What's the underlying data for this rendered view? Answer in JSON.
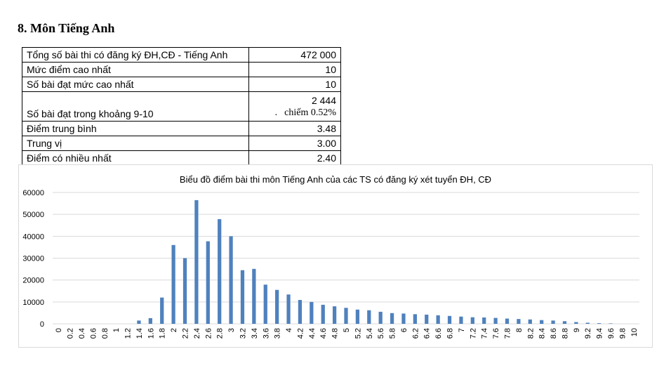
{
  "heading": "8. Môn Tiếng Anh",
  "stats": {
    "rows": [
      {
        "label": "Tổng số bài thi có đăng ký ĐH,CĐ - Tiếng Anh",
        "value": "472 000"
      },
      {
        "label": "Mức điểm cao nhất",
        "value": "10"
      },
      {
        "label": "Số bài đạt mức cao nhất",
        "value": "10"
      },
      {
        "label": "Số bài đạt trong khoảng 9-10",
        "value": "2 444",
        "subvalue": "chiếm 0.52%"
      },
      {
        "label": "Điểm trung bình",
        "value": "3.48"
      },
      {
        "label": "Trung vị",
        "value": "3.00"
      },
      {
        "label": "Điểm có nhiều nhất",
        "value": "2.40"
      }
    ]
  },
  "chart_data": {
    "type": "bar",
    "title": "Biểu đồ điểm bài thi môn Tiếng Anh của các TS có đăng ký xét tuyển ĐH, CĐ",
    "categories": [
      "0",
      "0.2",
      "0.4",
      "0.6",
      "0.8",
      "1",
      "1.2",
      "1.4",
      "1.6",
      "1.8",
      "2",
      "2.2",
      "2.4",
      "2.6",
      "2.8",
      "3",
      "3.2",
      "3.4",
      "3.6",
      "3.8",
      "4",
      "4.2",
      "4.4",
      "4.6",
      "4.8",
      "5",
      "5.2",
      "5.4",
      "5.6",
      "5.8",
      "6",
      "6.2",
      "6.4",
      "6.6",
      "6.8",
      "7",
      "7.2",
      "7.4",
      "7.6",
      "7.8",
      "8",
      "8.2",
      "8.4",
      "8.6",
      "8.8",
      "9",
      "9.2",
      "9.4",
      "9.6",
      "9.8",
      "10"
    ],
    "values": [
      0,
      0,
      0,
      0,
      0,
      0,
      0,
      1500,
      2600,
      12000,
      36000,
      30000,
      56500,
      37700,
      47800,
      40000,
      24500,
      25100,
      17900,
      15500,
      13400,
      10900,
      10000,
      8700,
      8000,
      7300,
      6500,
      6200,
      5500,
      4900,
      4700,
      4400,
      4200,
      3900,
      3600,
      3300,
      3000,
      2900,
      2700,
      2400,
      2200,
      2000,
      1700,
      1500,
      1200,
      800,
      500,
      300,
      200,
      0,
      0
    ],
    "yticks": [
      "0",
      "10000",
      "20000",
      "30000",
      "40000",
      "50000",
      "60000"
    ],
    "ylim": [
      0,
      60000
    ],
    "bar_color": "#4f81bd",
    "grid_color": "#d9d9d9",
    "grid": true
  }
}
